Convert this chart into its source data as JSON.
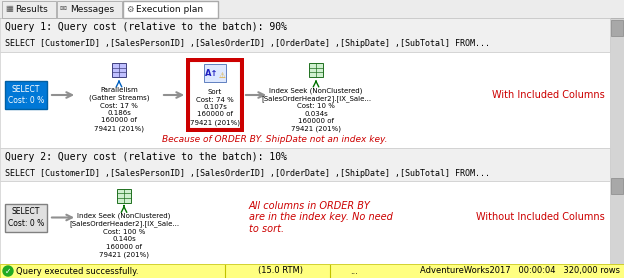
{
  "bg_color": "#ffffff",
  "tab_bar_color": "#ececec",
  "tab_border_color": "#aaaaaa",
  "tab_active_color": "#ffffff",
  "tabs": [
    "Results",
    "Messages",
    "Execution plan"
  ],
  "active_tab": "Execution plan",
  "query1_header": "Query 1: Query cost (relative to the batch): 90%",
  "query1_sql": "SELECT [CustomerID] ,[SalesPersonID] ,[SalesOrderID] ,[OrderDate] ,[ShipDate] ,[SubTotal] FROM...",
  "query2_header": "Query 2: Query cost (relative to the batch): 10%",
  "query2_sql": "SELECT [CustomerID] ,[SalesPersonID] ,[SalesOrderID] ,[OrderDate] ,[ShipDate] ,[SubTotal] FROM...",
  "select1_color": "#0078d7",
  "sort_border_color": "#cc0000",
  "annotation1": "Because of ORDER BY. ShipDate not an index key.",
  "annotation1_color": "#cc0000",
  "annotation2": "All columns in ORDER BY\nare in the index key. No need\nto sort.",
  "annotation2_color": "#cc0000",
  "right_label1": "With Included Columns",
  "right_label2": "Without Included Columns",
  "right_label_color": "#cc0000",
  "status_bar_text": "Query executed successfully.",
  "status_bar_color": "#ffff80",
  "status_rtm": "(15.0 RTM)",
  "status_right": "AdventureWorks2017   00:00:04   320,000 rows",
  "header_bg": "#f0f0f0",
  "section_bg": "#ffffff",
  "section_border": "#cccccc",
  "scrollbar_color": "#d4d4d4",
  "node_border": "#808080"
}
